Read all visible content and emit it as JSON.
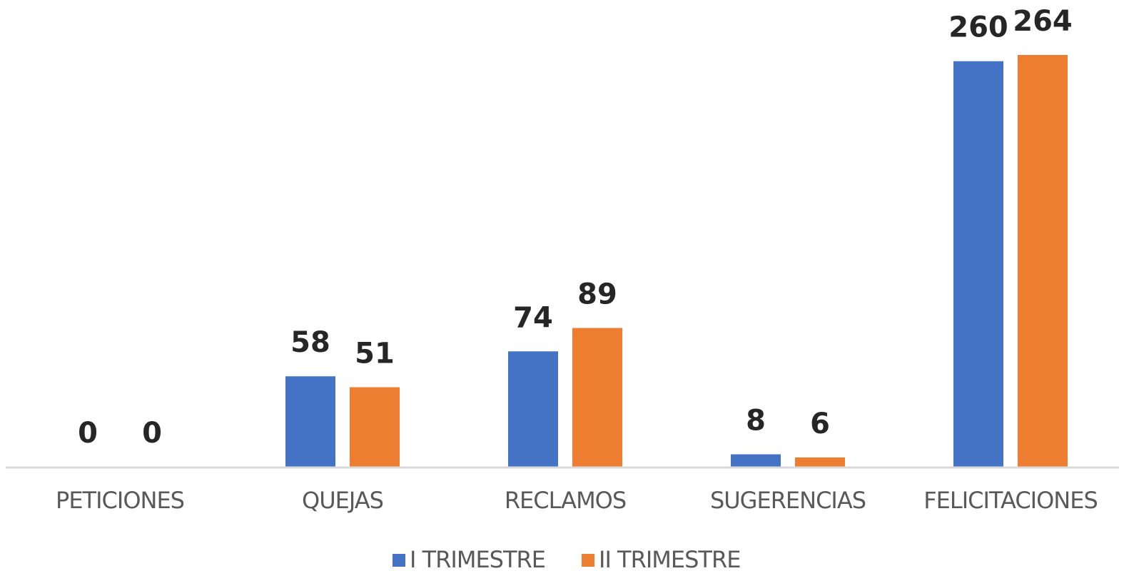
{
  "chart_data": {
    "type": "bar",
    "categories": [
      "PETICIONES",
      "QUEJAS",
      "RECLAMOS",
      "SUGERENCIAS",
      "FELICITACIONES"
    ],
    "series": [
      {
        "name": "I TRIMESTRE",
        "color": "#4472c4",
        "values": [
          0,
          58,
          74,
          8,
          260
        ]
      },
      {
        "name": "II TRIMESTRE",
        "color": "#ed7d31",
        "values": [
          0,
          51,
          89,
          6,
          264
        ]
      }
    ]
  }
}
